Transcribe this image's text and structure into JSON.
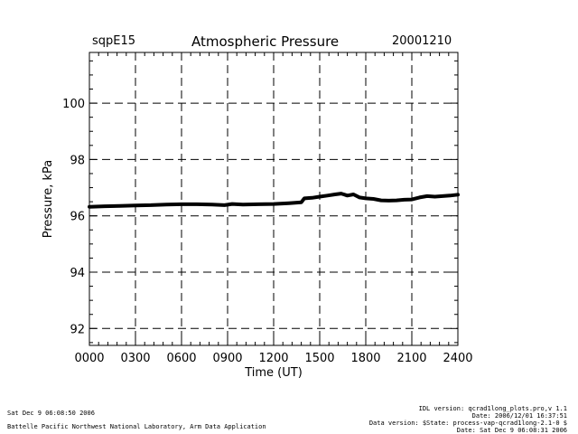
{
  "header": {
    "site": "sqpE15",
    "title": "Atmospheric Pressure",
    "date": "20001210"
  },
  "chart_data": {
    "type": "line",
    "title": "Atmospheric Pressure",
    "xlabel": "Time (UT)",
    "ylabel": "Pressure, kPa",
    "xlim": [
      0,
      24
    ],
    "ylim": [
      91.4,
      101.8
    ],
    "x_ticks": [
      0,
      3,
      6,
      9,
      12,
      15,
      18,
      21,
      24
    ],
    "x_tick_labels": [
      "0000",
      "0300",
      "0600",
      "0900",
      "1200",
      "1500",
      "1800",
      "2100",
      "2400"
    ],
    "y_ticks": [
      92,
      94,
      96,
      98,
      100
    ],
    "y_tick_labels": [
      "92",
      "94",
      "96",
      "98",
      "100"
    ],
    "grid": "dashed",
    "series": [
      {
        "color": "#000000",
        "x": [
          0,
          1,
          2,
          3,
          4,
          5,
          6,
          7,
          8,
          8.8,
          9.3,
          10,
          11,
          12,
          13,
          13.8,
          14,
          14.5,
          15,
          15.5,
          16,
          16.4,
          16.8,
          17.2,
          17.6,
          18,
          18.5,
          19,
          19.5,
          20,
          20.5,
          21,
          21.5,
          22,
          22.5,
          23,
          23.5,
          24
        ],
        "y": [
          96.32,
          96.34,
          96.35,
          96.37,
          96.38,
          96.4,
          96.41,
          96.41,
          96.4,
          96.38,
          96.42,
          96.4,
          96.41,
          96.42,
          96.45,
          96.48,
          96.62,
          96.64,
          96.68,
          96.72,
          96.76,
          96.79,
          96.72,
          96.76,
          96.65,
          96.62,
          96.6,
          96.55,
          96.54,
          96.55,
          96.57,
          96.58,
          96.65,
          96.7,
          96.68,
          96.7,
          96.72,
          96.75
        ]
      }
    ]
  },
  "footer": {
    "left_timestamp": "Sat Dec  9 06:08:50 2006",
    "left_org": "Battelle Pacific Northwest National Laboratory, Arm Data Application",
    "right_lines": [
      "IDL version: qcrad1long_plots.pro,v 1.1",
      "Date: 2006/12/01 16:37:51",
      "Data version: $State: process-vap-qcrad1long-2.1-0 $",
      "Date: Sat Dec  9 06:08:31 2006"
    ]
  }
}
